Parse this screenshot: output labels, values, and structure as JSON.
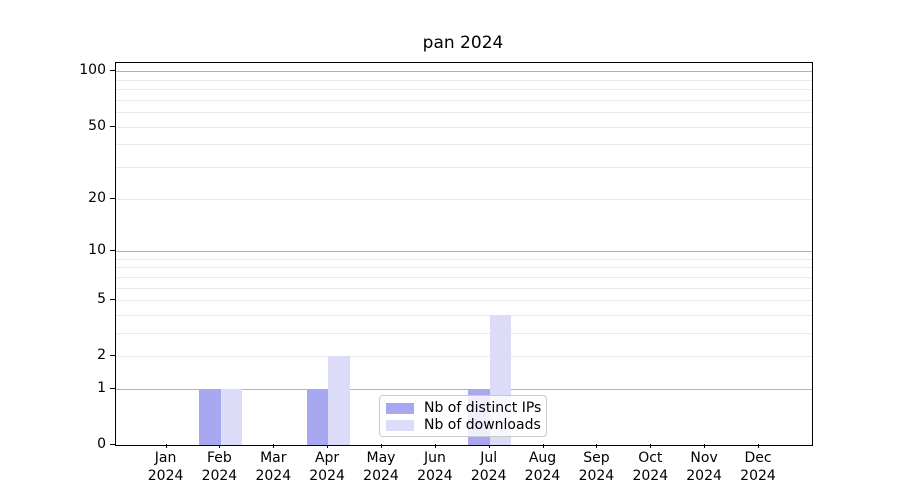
{
  "title": "pan 2024",
  "legend": {
    "items": [
      {
        "label": "Nb of distinct IPs",
        "series": "ips"
      },
      {
        "label": "Nb of downloads",
        "series": "downloads"
      }
    ]
  },
  "colors": {
    "grid_major": "#b3b3b3",
    "grid_minor": "#e9e9e9",
    "axis": "#000000",
    "legend_border": "#c9c9c9"
  },
  "chart_data": {
    "type": "bar",
    "title": "pan 2024",
    "categories": [
      {
        "month": "Jan",
        "year": "2024"
      },
      {
        "month": "Feb",
        "year": "2024"
      },
      {
        "month": "Mar",
        "year": "2024"
      },
      {
        "month": "Apr",
        "year": "2024"
      },
      {
        "month": "May",
        "year": "2024"
      },
      {
        "month": "Jun",
        "year": "2024"
      },
      {
        "month": "Jul",
        "year": "2024"
      },
      {
        "month": "Aug",
        "year": "2024"
      },
      {
        "month": "Sep",
        "year": "2024"
      },
      {
        "month": "Oct",
        "year": "2024"
      },
      {
        "month": "Nov",
        "year": "2024"
      },
      {
        "month": "Dec",
        "year": "2024"
      }
    ],
    "series": [
      {
        "key": "ips",
        "name": "Nb of distinct IPs",
        "color": "#a8a8f0",
        "values": [
          0,
          1,
          0,
          1,
          0,
          0,
          1,
          0,
          0,
          0,
          0,
          0
        ]
      },
      {
        "key": "downloads",
        "name": "Nb of downloads",
        "color": "#dcdcf8",
        "values": [
          0,
          1,
          0,
          2,
          0,
          0,
          4,
          0,
          0,
          0,
          0,
          0
        ]
      }
    ],
    "yscale": "log1p",
    "ylim": [
      0,
      111
    ],
    "y_tick_values": [
      0,
      1,
      2,
      5,
      10,
      20,
      50,
      100
    ],
    "y_tick_labels": [
      "0",
      "1",
      "2",
      "5",
      "10",
      "20",
      "50",
      "100"
    ],
    "y_major_gridlines": [
      1,
      10,
      100
    ],
    "y_minor_gridlines": [
      2,
      3,
      4,
      5,
      6,
      7,
      8,
      9,
      20,
      30,
      40,
      50,
      60,
      70,
      80,
      90
    ],
    "grid": "horizontal",
    "legend_position": "lower-center-inside"
  }
}
